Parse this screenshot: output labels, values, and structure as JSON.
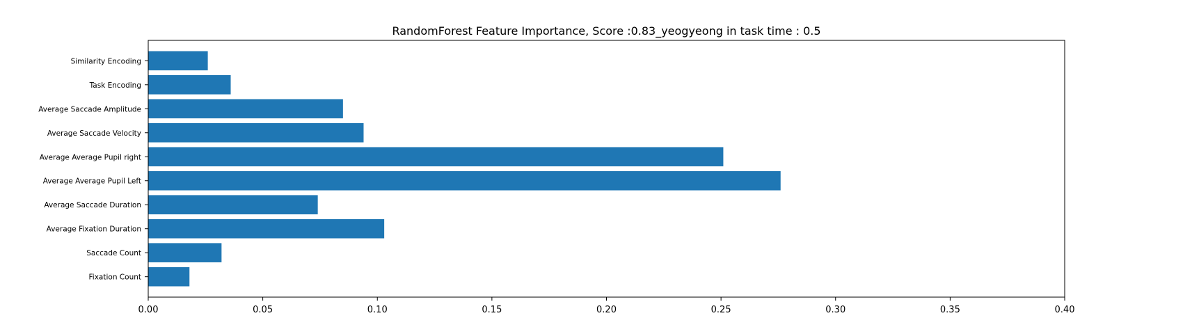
{
  "chart_data": {
    "type": "bar",
    "orientation": "horizontal",
    "title": "RandomForest Feature Importance, Score :0.83_yeogyeong in task time : 0.5",
    "xlabel": "",
    "ylabel": "",
    "categories": [
      "Fixation Count",
      "Saccade Count",
      "Average Fixation Duration",
      "Average Saccade Duration",
      "Average Average Pupil Left",
      "Average Average Pupil right",
      "Average Saccade Velocity",
      "Average Saccade Amplitude",
      "Task Encoding",
      "Similarity Encoding"
    ],
    "values": [
      0.018,
      0.032,
      0.103,
      0.074,
      0.276,
      0.251,
      0.094,
      0.085,
      0.036,
      0.026
    ],
    "xlim": [
      0.0,
      0.4
    ],
    "xticks": [
      "0.00",
      "0.05",
      "0.10",
      "0.15",
      "0.20",
      "0.25",
      "0.30",
      "0.35",
      "0.40"
    ],
    "grid": false,
    "legend": "none",
    "bar_color": "#1f77b4"
  }
}
